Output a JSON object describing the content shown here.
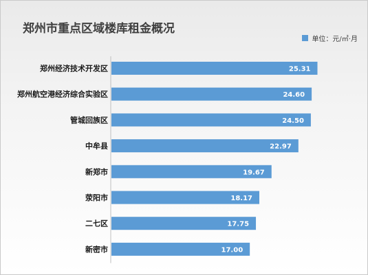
{
  "chart_data": {
    "type": "bar",
    "orientation": "horizontal",
    "title": "郑州市重点区域楼库租金概况",
    "legend": {
      "label": "单位：元/㎡·月",
      "position": "top-right"
    },
    "categories": [
      "郑州经济技术开发区",
      "郑州航空港经济综合实验区",
      "管城回族区",
      "中牟县",
      "新郑市",
      "荥阳市",
      "二七区",
      "新密市"
    ],
    "values": [
      25.31,
      24.6,
      24.5,
      22.97,
      19.67,
      18.17,
      17.75,
      17.0
    ],
    "value_labels": [
      "25.31",
      "24.60",
      "24.50",
      "22.97",
      "19.67",
      "18.17",
      "17.75",
      "17.00"
    ],
    "xlim": [
      0,
      30
    ],
    "grid": false,
    "bar_color": "#5b9bd5"
  }
}
